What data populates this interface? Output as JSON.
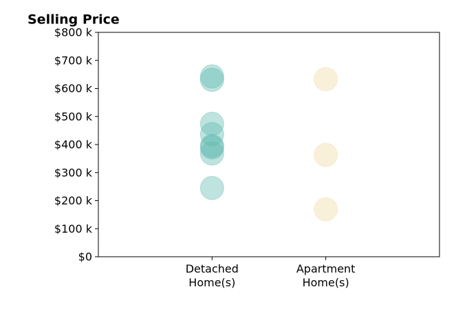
{
  "chart_data": {
    "type": "scatter",
    "title": "Selling Price",
    "categories": [
      "Detached\nHome(s)",
      "Apartment\nHome(s)"
    ],
    "values": [
      [
        643000,
        631000,
        474000,
        437000,
        395000,
        390000,
        368000,
        245000
      ],
      [
        633000,
        363000,
        169000
      ]
    ],
    "colors": [
      "#5fb8ae",
      "#f0d9a0"
    ],
    "opacity": 0.4,
    "ylim": [
      0,
      800000
    ],
    "yticks": [
      {
        "value": 0,
        "label": "$0"
      },
      {
        "value": 100000,
        "label": "$100 k"
      },
      {
        "value": 200000,
        "label": "$200 k"
      },
      {
        "value": 300000,
        "label": "$300 k"
      },
      {
        "value": 400000,
        "label": "$400 k"
      },
      {
        "value": 500000,
        "label": "$500 k"
      },
      {
        "value": 600000,
        "label": "$600 k"
      },
      {
        "value": 700000,
        "label": "$700 k"
      },
      {
        "value": 800000,
        "label": "$800 k"
      }
    ],
    "grid": false
  }
}
